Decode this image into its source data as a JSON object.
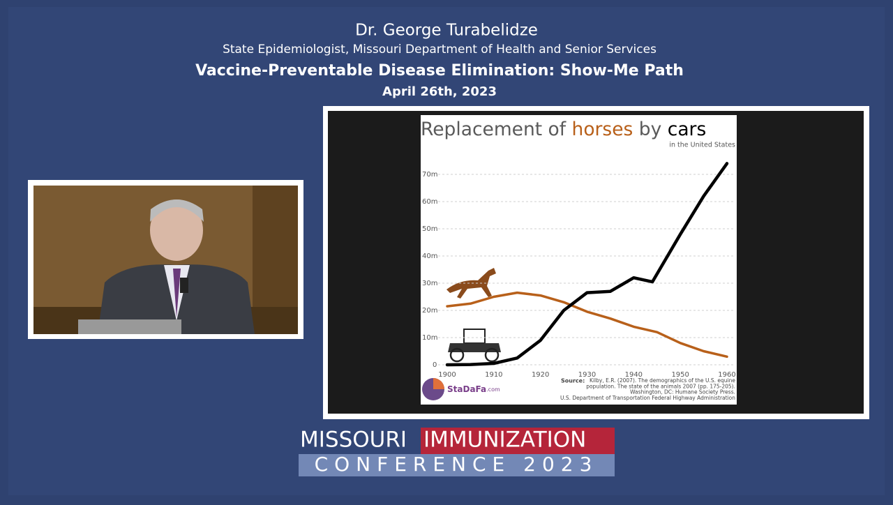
{
  "header": {
    "speaker": "Dr. George Turabelidze",
    "role": "State Epidemiologist, Missouri Department of Health and Senior Services",
    "talk": "Vaccine-Preventable Disease Elimination: Show-Me Path",
    "date": "April 26th, 2023"
  },
  "chart_data": {
    "type": "line",
    "title_parts": [
      "Replacement of",
      "horses",
      "by",
      "cars"
    ],
    "subtitle": "in the United States",
    "xlim": [
      1900,
      1960
    ],
    "xticks": [
      1900,
      1910,
      1920,
      1930,
      1940,
      1950,
      1960
    ],
    "ylim": [
      0,
      75
    ],
    "yticks": [
      0,
      {
        "value": 10,
        "label": "10m"
      },
      {
        "value": 20,
        "label": "20m"
      },
      {
        "value": 30,
        "label": "30m"
      },
      {
        "value": 40,
        "label": "40m"
      },
      {
        "value": 50,
        "label": "50m"
      },
      {
        "value": 60,
        "label": "60m"
      },
      {
        "value": 70,
        "label": "70m"
      }
    ],
    "grid": true,
    "series": [
      {
        "name": "horses",
        "color": "#b8601a",
        "x": [
          1900,
          1905,
          1910,
          1915,
          1920,
          1925,
          1930,
          1935,
          1940,
          1945,
          1950,
          1955,
          1960
        ],
        "values": [
          21.5,
          22.5,
          25,
          26.5,
          25.5,
          23,
          19.5,
          17,
          14,
          12,
          8,
          5,
          3
        ]
      },
      {
        "name": "cars",
        "color": "#000000",
        "x": [
          1900,
          1905,
          1910,
          1915,
          1920,
          1925,
          1930,
          1935,
          1940,
          1944,
          1950,
          1955,
          1960
        ],
        "values": [
          0,
          0.1,
          0.5,
          2.5,
          9,
          20,
          26.5,
          27,
          32,
          30.5,
          48,
          62,
          74
        ]
      }
    ],
    "source_label": "Source:",
    "source": [
      "Kilby, E.R. (2007). The demographics of the U.S. equine",
      "population. The state of the animals 2007 (pp. 175-205).",
      "Washington, DC: Humane Society Press.",
      "U.S. Department of Transportation Federal Highway Administration"
    ],
    "logo": "StaDaFa",
    "logo_suffix": ".com"
  },
  "footer": {
    "word1": "MISSOURI",
    "word2": "IMMUNIZATION",
    "line2": "CONFERENCE 2023"
  }
}
